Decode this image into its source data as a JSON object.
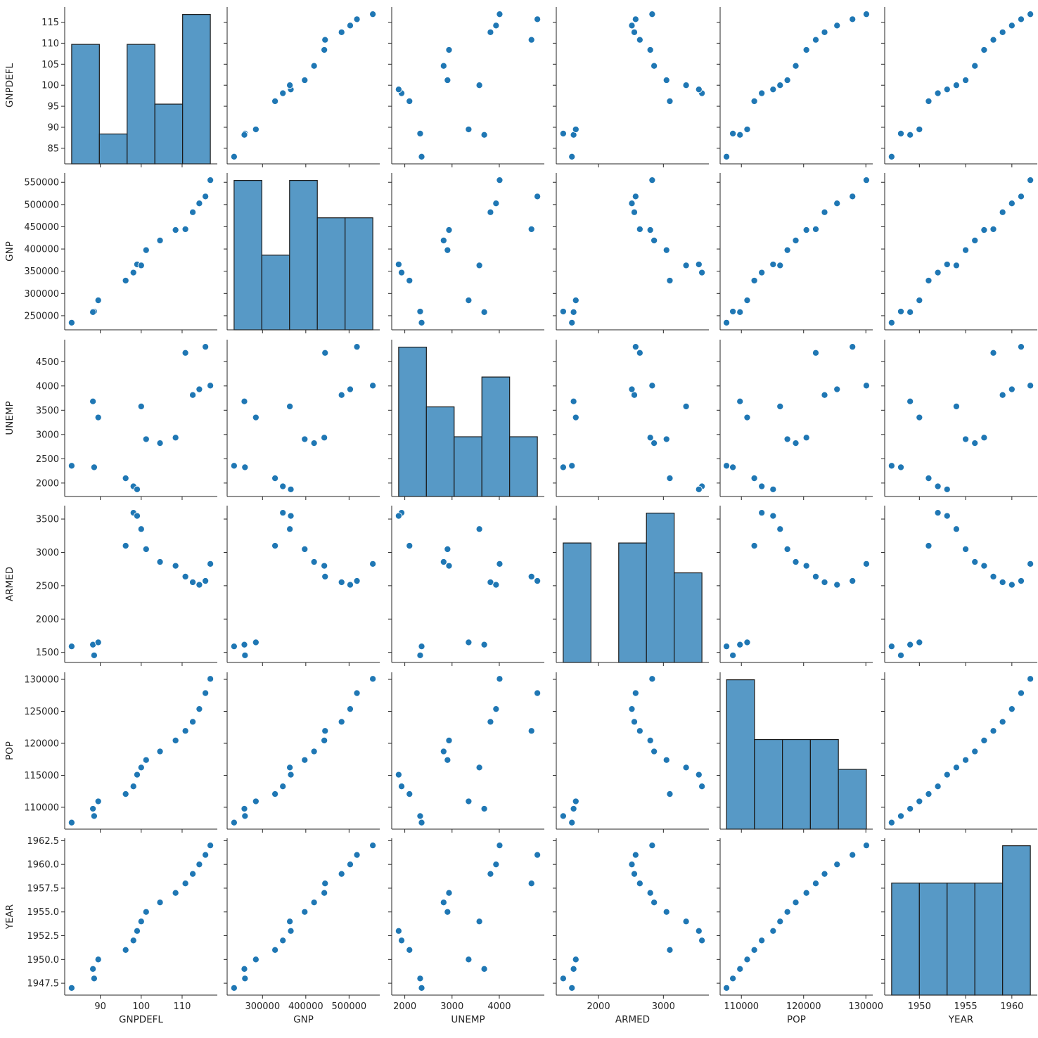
{
  "chart_data": {
    "type": "scatter",
    "title": "",
    "variables": [
      "GNPDEFL",
      "GNP",
      "UNEMP",
      "ARMED",
      "POP",
      "YEAR"
    ],
    "observations": {
      "YEAR": [
        1947,
        1948,
        1949,
        1950,
        1951,
        1952,
        1953,
        1954,
        1955,
        1956,
        1957,
        1958,
        1959,
        1960,
        1961,
        1962
      ],
      "GNPDEFL": [
        83.0,
        88.5,
        88.2,
        89.5,
        96.2,
        98.1,
        99.0,
        100.0,
        101.2,
        104.6,
        108.4,
        110.8,
        112.6,
        114.2,
        115.7,
        116.9
      ],
      "GNP": [
        234289,
        259426,
        258054,
        284599,
        328975,
        346999,
        365385,
        363112,
        397469,
        419180,
        442769,
        444546,
        482704,
        502601,
        518173,
        554894
      ],
      "UNEMP": [
        2356,
        2325,
        3682,
        3351,
        2099,
        1932,
        1870,
        3578,
        2904,
        2822,
        2936,
        4681,
        3813,
        3931,
        4806,
        4007
      ],
      "ARMED": [
        1590,
        1456,
        1616,
        1650,
        3099,
        3594,
        3547,
        3350,
        3048,
        2857,
        2798,
        2637,
        2552,
        2514,
        2572,
        2827
      ],
      "POP": [
        107608,
        108632,
        109773,
        110929,
        112075,
        113270,
        115094,
        116219,
        117388,
        118734,
        120445,
        121950,
        123366,
        125368,
        127852,
        130081
      ]
    },
    "axes": {
      "GNPDEFL": {
        "range": [
          81.3,
          118.6
        ],
        "ticks": [
          85,
          90,
          95,
          100,
          105,
          110,
          115
        ],
        "tick_labels": [
          "85",
          "90",
          "95",
          "100",
          "105",
          "110",
          "115"
        ],
        "x_ticks": [
          90,
          100,
          110
        ],
        "x_tick_labels": [
          "90",
          "100",
          "110"
        ]
      },
      "GNP": {
        "range": [
          218259,
          570924
        ],
        "ticks": [
          250000,
          300000,
          350000,
          400000,
          450000,
          500000,
          550000
        ],
        "tick_labels": [
          "250000",
          "300000",
          "350000",
          "400000",
          "450000",
          "500000",
          "550000"
        ],
        "x_ticks": [
          300000,
          400000,
          500000
        ],
        "x_tick_labels": [
          "300000",
          "400000",
          "500000"
        ]
      },
      "UNEMP": {
        "range": [
          1723,
          4953
        ],
        "ticks": [
          2000,
          2500,
          3000,
          3500,
          4000,
          4500
        ],
        "tick_labels": [
          "2000",
          "2500",
          "3000",
          "3500",
          "4000",
          "4500"
        ],
        "x_ticks": [
          2000,
          3000,
          4000
        ],
        "x_tick_labels": [
          "2000",
          "3000",
          "4000"
        ]
      },
      "ARMED": {
        "range": [
          1349,
          3701
        ],
        "ticks": [
          1500,
          2000,
          2500,
          3000,
          3500
        ],
        "tick_labels": [
          "1500",
          "2000",
          "2500",
          "3000",
          "3500"
        ],
        "x_ticks": [
          2000,
          3000
        ],
        "x_tick_labels": [
          "2000",
          "3000"
        ]
      },
      "POP": {
        "range": [
          106584,
          131105
        ],
        "ticks": [
          110000,
          115000,
          120000,
          125000,
          130000
        ],
        "tick_labels": [
          "110000",
          "115000",
          "120000",
          "125000",
          "130000"
        ],
        "x_ticks": [
          110000,
          120000,
          130000
        ],
        "x_tick_labels": [
          "110000",
          "120000",
          "130000"
        ]
      },
      "YEAR": {
        "range": [
          1946.25,
          1962.75
        ],
        "ticks": [
          1947.5,
          1950.0,
          1952.5,
          1955.0,
          1957.5,
          1960.0,
          1962.5
        ],
        "tick_labels": [
          "1947.5",
          "1950.0",
          "1952.5",
          "1955.0",
          "1957.5",
          "1960.0",
          "1962.5"
        ],
        "x_ticks": [
          1950,
          1955,
          1960
        ],
        "x_tick_labels": [
          "1950",
          "1955",
          "1960"
        ]
      }
    },
    "histograms": {
      "GNPDEFL": {
        "bins": 5,
        "counts": [
          4,
          1,
          4,
          2,
          5
        ]
      },
      "GNP": {
        "bins": 5,
        "counts": [
          4,
          2,
          4,
          3,
          3
        ]
      },
      "UNEMP": {
        "bins": 5,
        "counts": [
          5,
          3,
          2,
          4,
          2
        ]
      },
      "ARMED": {
        "bins": 5,
        "counts": [
          4,
          0,
          4,
          5,
          3
        ]
      },
      "POP": {
        "bins": 5,
        "counts": [
          5,
          3,
          3,
          3,
          2
        ]
      },
      "YEAR": {
        "bins": 5,
        "counts": [
          3,
          3,
          3,
          3,
          4
        ]
      }
    },
    "colors": {
      "point": "#1f77b4",
      "bar": "#5799c6",
      "edge": "#1a1a1a"
    }
  }
}
